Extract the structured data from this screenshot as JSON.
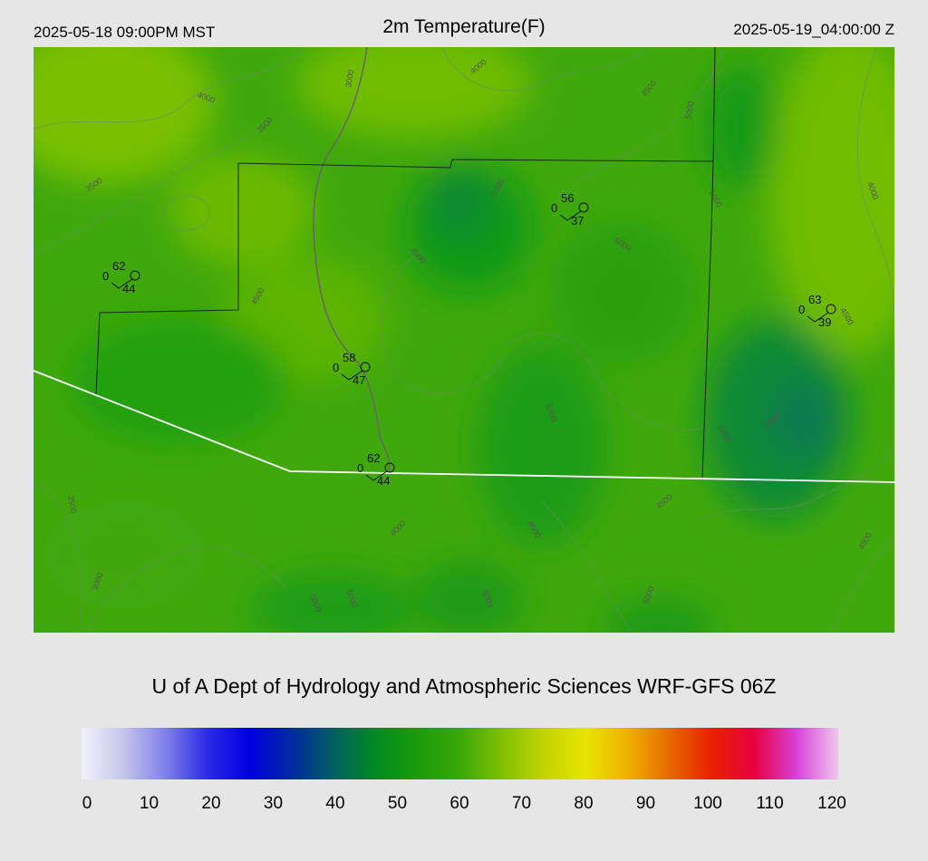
{
  "header": {
    "local_time": "2025-05-18 09:00PM MST",
    "title": "2m Temperature(F)",
    "utc_time": "2025-05-19_04:00:00 Z"
  },
  "footer": {
    "credit": "U of A Dept of Hydrology and Atmospheric Sciences WRF-GFS 06Z"
  },
  "colorbar": {
    "ticks": [
      "0",
      "10",
      "20",
      "30",
      "40",
      "50",
      "60",
      "70",
      "80",
      "90",
      "100",
      "110",
      "120"
    ],
    "stops": [
      "#f2f2fb",
      "#c4c4ec",
      "#8080ea",
      "#2a2ae8",
      "#0000e0",
      "#002aa0",
      "#006060",
      "#008a20",
      "#1a9c0a",
      "#3aa808",
      "#80c000",
      "#c2d400",
      "#e8e400",
      "#f0b000",
      "#e86800",
      "#e82000",
      "#e80040",
      "#d840d8",
      "#eec8ee"
    ]
  },
  "contour_labels": [
    "3000",
    "3500",
    "4000",
    "4500",
    "5000"
  ],
  "stations": [
    {
      "temp": "62",
      "dew": "44",
      "wind": "0"
    },
    {
      "temp": "56",
      "dew": "37",
      "wind": "0"
    },
    {
      "temp": "63",
      "dew": "39",
      "wind": "0"
    },
    {
      "temp": "58",
      "dew": "47",
      "wind": "0"
    },
    {
      "temp": "62",
      "dew": "44",
      "wind": "0"
    }
  ]
}
